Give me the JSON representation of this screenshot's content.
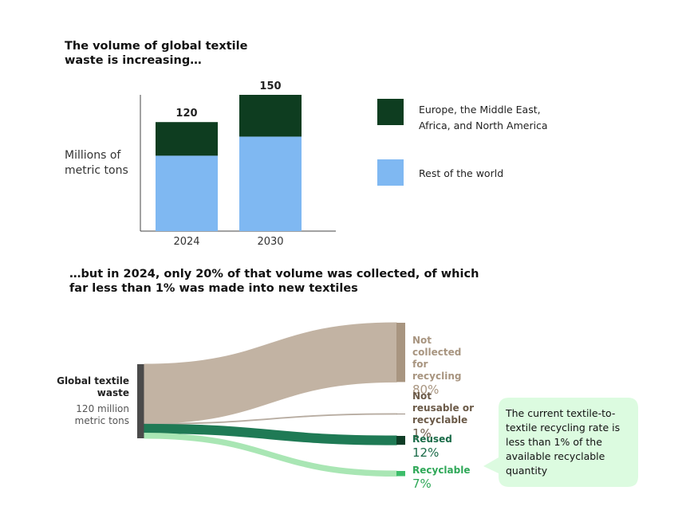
{
  "charts": [
    {
      "type": "stacked_bar",
      "title": "The volume of global textile waste is increasing…",
      "y_label": "Millions of metric tons",
      "categories": [
        "2024",
        "2030"
      ],
      "series": [
        {
          "name": "Rest of the world",
          "color": "#7fb8f2",
          "values": [
            83,
            104
          ]
        },
        {
          "name": "Europe, the Middle East, Africa, and North America",
          "color": "#0e3d20",
          "values": [
            37,
            46
          ]
        }
      ],
      "totals": [
        120,
        150
      ],
      "ylim": [
        0,
        150
      ]
    },
    {
      "type": "sankey",
      "title": "…but in 2024, only 20% of that volume was collected, of which far less than 1% was made into new textiles",
      "source": "Global textile waste",
      "source_note": "120 million metric tons",
      "flows": [
        {
          "name": "Not collected for recycling",
          "value": 80,
          "value_label": "80%",
          "color": "#c2b3a3",
          "node_color": "#a89580",
          "label_color": "#a89580"
        },
        {
          "name": "Not reusable or recyclable",
          "value": 1,
          "value_label": "1%",
          "color": "#b8ada2",
          "node_color": "#9a8d80",
          "label_color": "#6b5a48"
        },
        {
          "name": "Reused",
          "value": 12,
          "value_label": "12%",
          "color": "#1f7a55",
          "node_color": "#0f3d26",
          "label_color": "#1a6b48"
        },
        {
          "name": "Recyclable",
          "value": 7,
          "value_label": "7%",
          "color": "#a9e6b4",
          "node_color": "#3dbd6a",
          "label_color": "#2fa858"
        }
      ],
      "callout": "The current textile-to-textile recycling rate is less than 1% of the available recyclable quantity"
    }
  ]
}
